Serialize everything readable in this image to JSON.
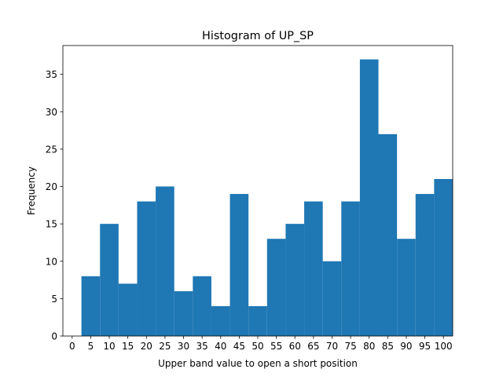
{
  "chart_data": {
    "type": "bar",
    "title": "Histogram of UP_SP",
    "xlabel": "Upper band value to open a short position",
    "ylabel": "Frequency",
    "bar_color": "#1f77b4",
    "xlim": [
      -2.5,
      102.5
    ],
    "ylim": [
      0,
      38.85
    ],
    "x_ticks": [
      0,
      5,
      10,
      15,
      20,
      25,
      30,
      35,
      40,
      45,
      50,
      55,
      60,
      65,
      70,
      75,
      80,
      85,
      90,
      95,
      100
    ],
    "y_ticks": [
      0,
      5,
      10,
      15,
      20,
      25,
      30,
      35
    ],
    "bins": [
      {
        "start": 2.5,
        "end": 7.5,
        "value": 8
      },
      {
        "start": 7.5,
        "end": 12.5,
        "value": 15
      },
      {
        "start": 12.5,
        "end": 17.5,
        "value": 7
      },
      {
        "start": 17.5,
        "end": 22.5,
        "value": 18
      },
      {
        "start": 22.5,
        "end": 27.5,
        "value": 20
      },
      {
        "start": 27.5,
        "end": 32.5,
        "value": 6
      },
      {
        "start": 32.5,
        "end": 37.5,
        "value": 8
      },
      {
        "start": 37.5,
        "end": 42.5,
        "value": 4
      },
      {
        "start": 42.5,
        "end": 47.5,
        "value": 19
      },
      {
        "start": 47.5,
        "end": 52.5,
        "value": 4
      },
      {
        "start": 52.5,
        "end": 57.5,
        "value": 13
      },
      {
        "start": 57.5,
        "end": 62.5,
        "value": 15
      },
      {
        "start": 62.5,
        "end": 67.5,
        "value": 18
      },
      {
        "start": 67.5,
        "end": 72.5,
        "value": 10
      },
      {
        "start": 72.5,
        "end": 77.5,
        "value": 18
      },
      {
        "start": 77.5,
        "end": 82.5,
        "value": 37
      },
      {
        "start": 82.5,
        "end": 87.5,
        "value": 27
      },
      {
        "start": 87.5,
        "end": 92.5,
        "value": 13
      },
      {
        "start": 92.5,
        "end": 97.5,
        "value": 19
      },
      {
        "start": 97.5,
        "end": 102.5,
        "value": 21
      }
    ],
    "grid": false,
    "legend": "none"
  }
}
